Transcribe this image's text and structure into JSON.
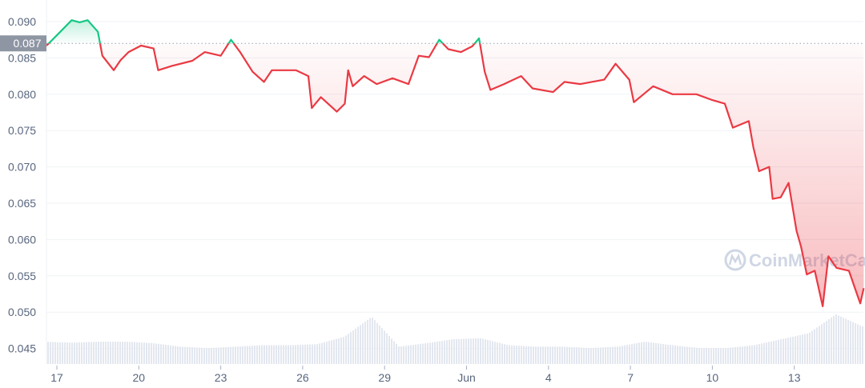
{
  "chart_data": {
    "type": "line",
    "title": "",
    "xlabel": "",
    "ylabel": "",
    "reference_price": 0.087,
    "reference_label": "0.087",
    "ylim": [
      0.0435,
      0.0925
    ],
    "yticks": [
      "0.090",
      "0.085",
      "0.080",
      "0.075",
      "0.070",
      "0.065",
      "0.060",
      "0.055",
      "0.050",
      "0.045"
    ],
    "ytick_values": [
      0.09,
      0.085,
      0.08,
      0.075,
      0.07,
      0.065,
      0.06,
      0.055,
      0.05,
      0.045
    ],
    "xticks": [
      "17",
      "20",
      "23",
      "26",
      "29",
      "Jun",
      "4",
      "7",
      "10",
      "13"
    ],
    "xtick_dates": [
      "05-17",
      "05-20",
      "05-23",
      "05-26",
      "05-29",
      "06-01",
      "06-04",
      "06-07",
      "06-10",
      "06-13"
    ],
    "grid": true,
    "colors": {
      "above": "#16c784",
      "below": "#ea3943",
      "volume": "#e3e7ef",
      "reference_box": "#8e95a3"
    },
    "watermark": "CoinMarketCap",
    "series": [
      {
        "points": [
          [
            "05-16 15",
            0.0867
          ],
          [
            "05-17 03",
            0.0886
          ],
          [
            "05-17 13",
            0.0902
          ],
          [
            "05-17 20",
            0.0899
          ],
          [
            "05-18 03",
            0.0902
          ],
          [
            "05-18 12",
            0.0886
          ],
          [
            "05-18 16",
            0.0853
          ],
          [
            "05-19 02",
            0.0833
          ],
          [
            "05-19 08",
            0.0847
          ],
          [
            "05-19 15",
            0.0858
          ],
          [
            "05-20 02",
            0.0867
          ],
          [
            "05-20 13",
            0.0863
          ],
          [
            "05-20 17",
            0.0833
          ],
          [
            "05-21 05",
            0.0839
          ],
          [
            "05-21 23",
            0.0846
          ],
          [
            "05-22 10",
            0.0858
          ],
          [
            "05-23 00",
            0.0853
          ],
          [
            "05-23 09",
            0.0875
          ],
          [
            "05-23 17",
            0.0858
          ],
          [
            "05-24 04",
            0.0831
          ],
          [
            "05-24 14",
            0.0817
          ],
          [
            "05-24 21",
            0.0833
          ],
          [
            "05-25 18",
            0.0833
          ],
          [
            "05-26 05",
            0.0825
          ],
          [
            "05-26 08",
            0.0781
          ],
          [
            "05-26 16",
            0.0796
          ],
          [
            "05-27 06",
            0.0776
          ],
          [
            "05-27 13",
            0.0787
          ],
          [
            "05-27 16",
            0.0833
          ],
          [
            "05-27 20",
            0.0811
          ],
          [
            "05-28 06",
            0.0825
          ],
          [
            "05-28 17",
            0.0814
          ],
          [
            "05-29 07",
            0.0822
          ],
          [
            "05-29 21",
            0.0814
          ],
          [
            "05-30 06",
            0.0853
          ],
          [
            "05-30 15",
            0.0851
          ],
          [
            "05-31 00",
            0.0875
          ],
          [
            "05-31 08",
            0.0862
          ],
          [
            "05-31 19",
            0.0858
          ],
          [
            "06-01 05",
            0.0866
          ],
          [
            "06-01 11",
            0.0877
          ],
          [
            "06-01 16",
            0.0831
          ],
          [
            "06-01 21",
            0.0806
          ],
          [
            "06-02 09",
            0.0814
          ],
          [
            "06-03 00",
            0.0825
          ],
          [
            "06-03 10",
            0.0808
          ],
          [
            "06-04 04",
            0.0803
          ],
          [
            "06-04 14",
            0.0817
          ],
          [
            "06-05 04",
            0.0814
          ],
          [
            "06-06 01",
            0.082
          ],
          [
            "06-06 11",
            0.0842
          ],
          [
            "06-06 23",
            0.082
          ],
          [
            "06-07 03",
            0.0789
          ],
          [
            "06-07 20",
            0.0811
          ],
          [
            "06-08 13",
            0.08
          ],
          [
            "06-09 10",
            0.08
          ],
          [
            "06-10 00",
            0.0792
          ],
          [
            "06-10 11",
            0.0787
          ],
          [
            "06-10 18",
            0.0754
          ],
          [
            "06-11 08",
            0.0763
          ],
          [
            "06-11 12",
            0.0727
          ],
          [
            "06-11 17",
            0.0694
          ],
          [
            "06-12 02",
            0.07
          ],
          [
            "06-12 05",
            0.0656
          ],
          [
            "06-12 12",
            0.0658
          ],
          [
            "06-12 19",
            0.0678
          ],
          [
            "06-13 02",
            0.0612
          ],
          [
            "06-13 06",
            0.059
          ],
          [
            "06-13 11",
            0.0552
          ],
          [
            "06-13 18",
            0.0557
          ],
          [
            "06-14 01",
            0.0508
          ],
          [
            "06-14 06",
            0.0577
          ],
          [
            "06-14 13",
            0.0561
          ],
          [
            "06-15 00",
            0.0557
          ],
          [
            "06-15 06",
            0.053
          ],
          [
            "06-15 10",
            0.0512
          ],
          [
            "06-15 13",
            0.0533
          ]
        ]
      }
    ],
    "volume_relative": {
      "dates": [
        "05-16",
        "05-17",
        "05-18",
        "05-19",
        "05-20",
        "05-21",
        "05-22",
        "05-23",
        "05-24",
        "05-25",
        "05-26",
        "05-27",
        "05-28",
        "05-29",
        "05-30",
        "05-31",
        "06-01",
        "06-02",
        "06-03",
        "06-04",
        "06-05",
        "06-06",
        "06-07",
        "06-08",
        "06-09",
        "06-10",
        "06-11",
        "06-12",
        "06-13",
        "06-14",
        "06-15"
      ],
      "values": [
        0.45,
        0.43,
        0.45,
        0.45,
        0.42,
        0.35,
        0.32,
        0.35,
        0.38,
        0.38,
        0.4,
        0.55,
        0.95,
        0.35,
        0.42,
        0.5,
        0.52,
        0.38,
        0.35,
        0.35,
        0.32,
        0.35,
        0.45,
        0.38,
        0.32,
        0.32,
        0.38,
        0.5,
        0.62,
        1.0,
        0.75
      ]
    }
  }
}
